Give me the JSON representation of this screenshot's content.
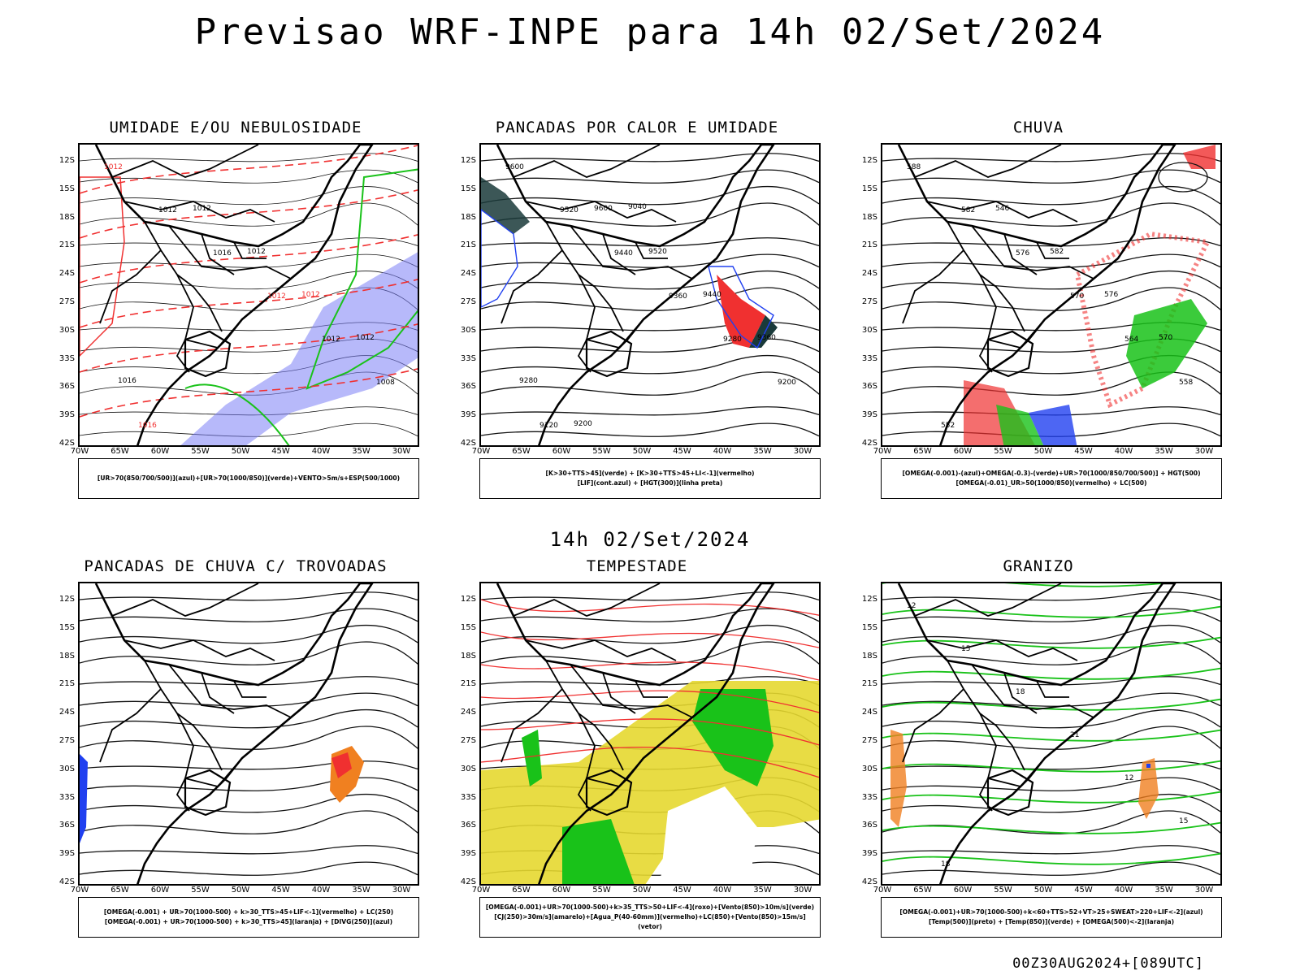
{
  "title": "Previsao WRF-INPE  para 14h 02/Set/2024",
  "subtitle": "14h 02/Set/2024",
  "footer": "00Z30AUG2024+[089UTC]",
  "lat_labels": [
    "12S",
    "15S",
    "18S",
    "21S",
    "24S",
    "27S",
    "30S",
    "33S",
    "36S",
    "39S",
    "42S"
  ],
  "lon_labels": [
    "70W",
    "65W",
    "60W",
    "55W",
    "50W",
    "45W",
    "40W",
    "35W",
    "30W"
  ],
  "panels": [
    {
      "title": "UMIDADE E/OU NEBULOSIDADE",
      "legend": [
        "[UR>70(850/700/500)](azul)+[UR>70(1000/850)](verde)+VENTO>5m/s+ESP(500/1000)"
      ],
      "contour_labels": [
        "1012",
        "1012",
        "1016",
        "1012",
        "1012",
        "1008",
        "1016",
        "1012",
        "1012",
        "1012",
        "1012",
        "1016"
      ],
      "colors": {
        "primary": "#7b7ff5",
        "secondary": "#19c219",
        "accent": "#f03030"
      }
    },
    {
      "title": "PANCADAS POR CALOR E UMIDADE",
      "legend": [
        "[K>30+TTS>45](verde) + [K>30+TTS>45+LI<-1](vermelho)",
        "[LIF](cont.azul) + [HGT(300)](linha preta)"
      ],
      "contour_labels": [
        "9600",
        "9520",
        "9440",
        "9360",
        "9280",
        "9200",
        "9120",
        "9600",
        "9520",
        "9440",
        "9360",
        "9280",
        "9200",
        "9040"
      ],
      "colors": {
        "primary": "#1a3a3a",
        "secondary": "#f03030",
        "accent": "#2040f0"
      }
    },
    {
      "title": "CHUVA",
      "legend": [
        "[OMEGA(-0.001)-(azul)+OMEGA(-0.3)-(verde)+UR>70(1000/850/700/500)] + HGT(500)",
        "[OMEGA(-0.01)_UR>50(1000/850)(vermelho) + LC(500)"
      ],
      "contour_labels": [
        "588",
        "582",
        "576",
        "570",
        "564",
        "558",
        "552",
        "546",
        "582",
        "576",
        "570"
      ],
      "colors": {
        "primary": "#f03030",
        "secondary": "#19c219",
        "accent": "#2040f0"
      }
    },
    {
      "title": "PANCADAS DE CHUVA C/ TROVOADAS",
      "legend": [
        "[OMEGA(-0.001) + UR>70(1000-500) + k>30_TTS>45+LIF<-1](vermelho) + LC(250)",
        "[OMEGA(-0.001) + UR>70(1000-500) + k>30_TTS>45](laranja) + [DIVG(250)](azul)"
      ],
      "contour_labels": [],
      "colors": {
        "primary": "#f03030",
        "secondary": "#f08020",
        "accent": "#2040f0"
      }
    },
    {
      "title": "TEMPESTADE",
      "legend": [
        "[OMEGA(-0.001)+UR>70(1000-500)+k>35_TTS>50+LIF<-4](roxo)+[Vento(850)>10m/s](verde)",
        "[CJ(250)>30m/s](amarelo)+[Agua_P(40-60mm)](vermelho)+LC(850)+[Vento(850)>15m/s](vetor)"
      ],
      "contour_labels": [],
      "colors": {
        "primary": "#e6d830",
        "secondary": "#19c219",
        "accent": "#f03030"
      }
    },
    {
      "title": "GRANIZO",
      "legend": [
        "[OMEGA(-0.001)+UR>70(1000-500)+k<60+TTS>52+VT>25+SWEAT>220+LIF<-2](azul)",
        "[Temp(500)](preto) + [Temp(850)](verde) + [OMEGA(500)<-2](laranja)"
      ],
      "contour_labels": [
        "12",
        "15",
        "18",
        "21",
        "12",
        "15",
        "18"
      ],
      "colors": {
        "primary": "#19c219",
        "secondary": "#f08020",
        "accent": "#2040f0"
      }
    }
  ]
}
